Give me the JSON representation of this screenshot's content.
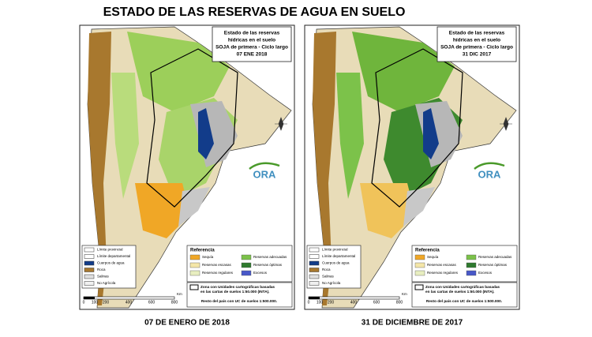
{
  "title": "ESTADO DE LAS RESERVAS DE AGUA EN SUELO",
  "maps": [
    {
      "box_title": [
        "Estado de las reservas",
        "hídricas en el suelo",
        "SOJA de primera - Ciclo largo",
        "07 ENE 2018"
      ],
      "logo": "ORA",
      "legend": {
        "heading": "Referencia",
        "limits": [
          "Límite provincial",
          "Límite departamental",
          "Cuerpos de agua",
          "Roca",
          "Salinas",
          "No Agrícola"
        ],
        "classes": [
          "Sequía",
          "Reservas escasas",
          "Reservas regulares",
          "Reservas adecuadas",
          "Reservas óptimas",
          "Excesos"
        ]
      },
      "note": [
        "Zona con Unidades cartográficas basadas",
        "en las cartas de suelos 1:50.000 (INTA).",
        "Resto del país con UC de suelos 1:500.000."
      ],
      "scale": [
        "0",
        "100",
        "200",
        "400",
        "600",
        "800",
        "Km"
      ],
      "caption": "07 DE ENERO DE 2018"
    },
    {
      "box_title": [
        "Estado de las reservas",
        "hídricas en el suelo",
        "SOJA de primera - Ciclo largo",
        "31 DIC 2017"
      ],
      "logo": "ORA",
      "legend": {
        "heading": "Referencia",
        "limits": [
          "Límite provincial",
          "Límite departamental",
          "Cuerpos de agua",
          "Roca",
          "Salinas",
          "No Agrícola"
        ],
        "classes": [
          "Sequía",
          "Reservas escasas",
          "Reservas regulares",
          "Reservas adecuadas",
          "Reservas óptimas",
          "Excesos"
        ]
      },
      "note": [
        "Zona con Unidades cartográficas basadas",
        "en las cartas de suelos 1:50.000 (INTA).",
        "Resto del país con UC de suelos 1:500.000."
      ],
      "scale": [
        "0",
        "100",
        "200",
        "400",
        "600",
        "800",
        "Km"
      ],
      "caption": "31 DE DICIEMBRE DE 2017"
    }
  ]
}
